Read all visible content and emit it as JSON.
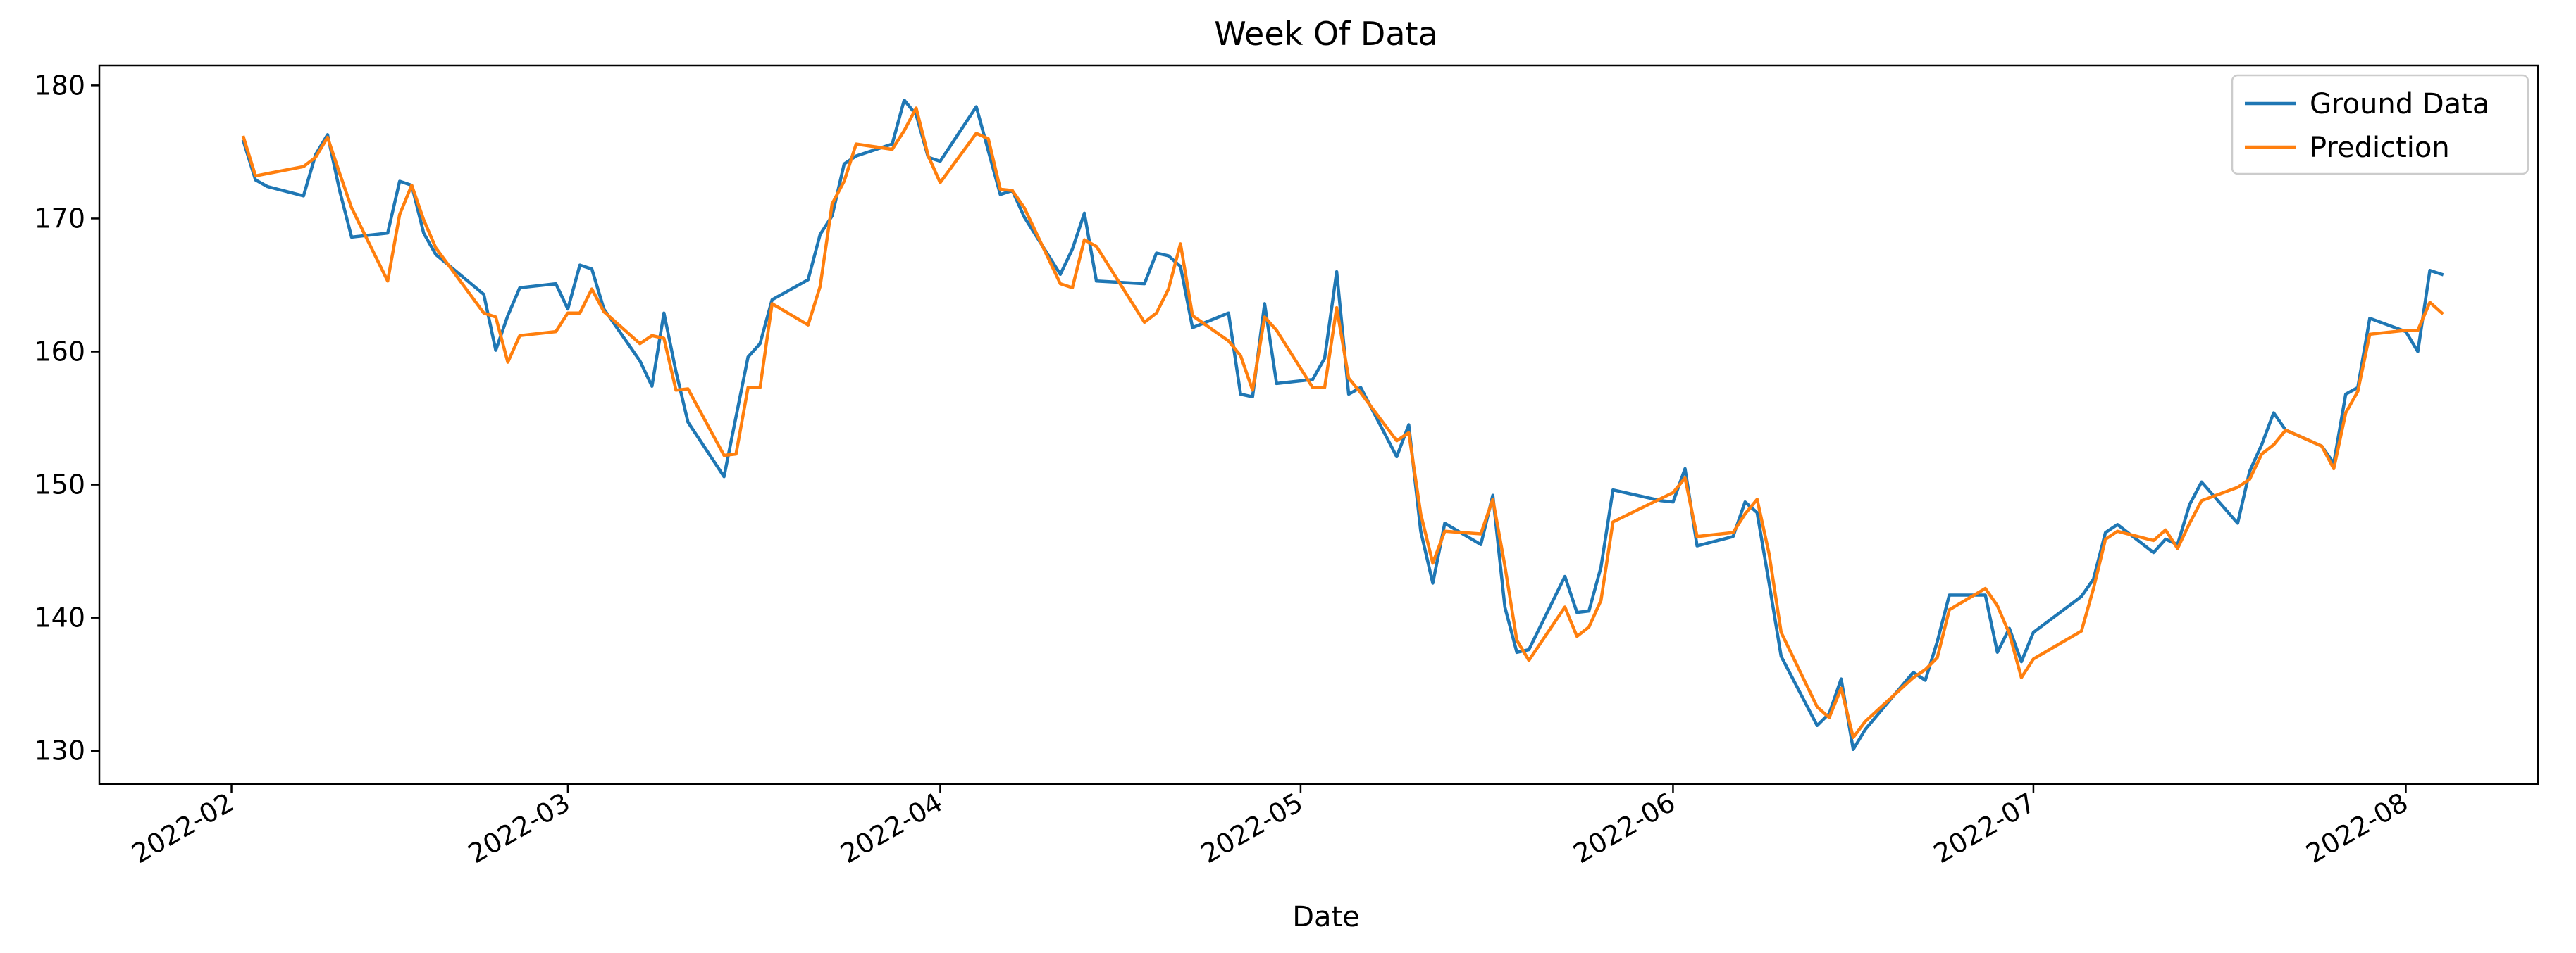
{
  "chart_data": {
    "type": "line",
    "title": "Week Of Data",
    "xlabel": "Date",
    "ylabel": "",
    "x_range": [
      "2022-01-21",
      "2022-08-12"
    ],
    "ylim": [
      127.5,
      181.5
    ],
    "grid": false,
    "legend_position": "top-right",
    "x_ticks": [
      "2022-02-01",
      "2022-03-01",
      "2022-04-01",
      "2022-05-01",
      "2022-06-01",
      "2022-07-01",
      "2022-08-01"
    ],
    "x_tick_labels": [
      "2022-02",
      "2022-03",
      "2022-04",
      "2022-05",
      "2022-06",
      "2022-07",
      "2022-08"
    ],
    "y_ticks": [
      130,
      140,
      150,
      160,
      170,
      180
    ],
    "series": [
      {
        "name": "Ground Data",
        "color": "#1f77b4",
        "points": [
          [
            "2022-02-02",
            175.8
          ],
          [
            "2022-02-03",
            172.9
          ],
          [
            "2022-02-04",
            172.4
          ],
          [
            "2022-02-07",
            171.7
          ],
          [
            "2022-02-08",
            174.8
          ],
          [
            "2022-02-09",
            176.3
          ],
          [
            "2022-02-10",
            172.1
          ],
          [
            "2022-02-11",
            168.6
          ],
          [
            "2022-02-14",
            168.9
          ],
          [
            "2022-02-15",
            172.8
          ],
          [
            "2022-02-16",
            172.5
          ],
          [
            "2022-02-17",
            168.9
          ],
          [
            "2022-02-18",
            167.3
          ],
          [
            "2022-02-22",
            164.3
          ],
          [
            "2022-02-23",
            160.1
          ],
          [
            "2022-02-24",
            162.7
          ],
          [
            "2022-02-25",
            164.8
          ],
          [
            "2022-02-28",
            165.1
          ],
          [
            "2022-03-01",
            163.2
          ],
          [
            "2022-03-02",
            166.5
          ],
          [
            "2022-03-03",
            166.2
          ],
          [
            "2022-03-04",
            163.2
          ],
          [
            "2022-03-07",
            159.3
          ],
          [
            "2022-03-08",
            157.4
          ],
          [
            "2022-03-09",
            162.9
          ],
          [
            "2022-03-10",
            158.5
          ],
          [
            "2022-03-11",
            154.7
          ],
          [
            "2022-03-14",
            150.6
          ],
          [
            "2022-03-15",
            155.1
          ],
          [
            "2022-03-16",
            159.6
          ],
          [
            "2022-03-17",
            160.6
          ],
          [
            "2022-03-18",
            163.9
          ],
          [
            "2022-03-21",
            165.4
          ],
          [
            "2022-03-22",
            168.8
          ],
          [
            "2022-03-23",
            170.2
          ],
          [
            "2022-03-24",
            174.1
          ],
          [
            "2022-03-25",
            174.7
          ],
          [
            "2022-03-28",
            175.6
          ],
          [
            "2022-03-29",
            178.9
          ],
          [
            "2022-03-30",
            177.8
          ],
          [
            "2022-03-31",
            174.6
          ],
          [
            "2022-04-01",
            174.3
          ],
          [
            "2022-04-04",
            178.4
          ],
          [
            "2022-04-05",
            175.1
          ],
          [
            "2022-04-06",
            171.8
          ],
          [
            "2022-04-07",
            172.1
          ],
          [
            "2022-04-08",
            170.1
          ],
          [
            "2022-04-11",
            165.8
          ],
          [
            "2022-04-12",
            167.7
          ],
          [
            "2022-04-13",
            170.4
          ],
          [
            "2022-04-14",
            165.3
          ],
          [
            "2022-04-18",
            165.1
          ],
          [
            "2022-04-19",
            167.4
          ],
          [
            "2022-04-20",
            167.2
          ],
          [
            "2022-04-21",
            166.4
          ],
          [
            "2022-04-22",
            161.8
          ],
          [
            "2022-04-25",
            162.9
          ],
          [
            "2022-04-26",
            156.8
          ],
          [
            "2022-04-27",
            156.6
          ],
          [
            "2022-04-28",
            163.6
          ],
          [
            "2022-04-29",
            157.6
          ],
          [
            "2022-05-02",
            157.9
          ],
          [
            "2022-05-03",
            159.5
          ],
          [
            "2022-05-04",
            166.0
          ],
          [
            "2022-05-05",
            156.8
          ],
          [
            "2022-05-06",
            157.3
          ],
          [
            "2022-05-09",
            152.1
          ],
          [
            "2022-05-10",
            154.5
          ],
          [
            "2022-05-11",
            146.5
          ],
          [
            "2022-05-12",
            142.6
          ],
          [
            "2022-05-13",
            147.1
          ],
          [
            "2022-05-16",
            145.5
          ],
          [
            "2022-05-17",
            149.2
          ],
          [
            "2022-05-18",
            140.8
          ],
          [
            "2022-05-19",
            137.4
          ],
          [
            "2022-05-20",
            137.6
          ],
          [
            "2022-05-23",
            143.1
          ],
          [
            "2022-05-24",
            140.4
          ],
          [
            "2022-05-25",
            140.5
          ],
          [
            "2022-05-26",
            143.8
          ],
          [
            "2022-05-27",
            149.6
          ],
          [
            "2022-05-31",
            148.8
          ],
          [
            "2022-06-01",
            148.7
          ],
          [
            "2022-06-02",
            151.2
          ],
          [
            "2022-06-03",
            145.4
          ],
          [
            "2022-06-06",
            146.1
          ],
          [
            "2022-06-07",
            148.7
          ],
          [
            "2022-06-08",
            147.9
          ],
          [
            "2022-06-09",
            142.6
          ],
          [
            "2022-06-10",
            137.1
          ],
          [
            "2022-06-13",
            131.9
          ],
          [
            "2022-06-14",
            132.8
          ],
          [
            "2022-06-15",
            135.4
          ],
          [
            "2022-06-16",
            130.1
          ],
          [
            "2022-06-17",
            131.6
          ],
          [
            "2022-06-21",
            135.9
          ],
          [
            "2022-06-22",
            135.3
          ],
          [
            "2022-06-23",
            138.2
          ],
          [
            "2022-06-24",
            141.7
          ],
          [
            "2022-06-27",
            141.7
          ],
          [
            "2022-06-28",
            137.4
          ],
          [
            "2022-06-29",
            139.2
          ],
          [
            "2022-06-30",
            136.7
          ],
          [
            "2022-07-01",
            138.9
          ],
          [
            "2022-07-05",
            141.6
          ],
          [
            "2022-07-06",
            142.9
          ],
          [
            "2022-07-07",
            146.4
          ],
          [
            "2022-07-08",
            147.0
          ],
          [
            "2022-07-11",
            144.9
          ],
          [
            "2022-07-12",
            145.9
          ],
          [
            "2022-07-13",
            145.5
          ],
          [
            "2022-07-14",
            148.5
          ],
          [
            "2022-07-15",
            150.2
          ],
          [
            "2022-07-18",
            147.1
          ],
          [
            "2022-07-19",
            151.0
          ],
          [
            "2022-07-20",
            153.0
          ],
          [
            "2022-07-21",
            155.4
          ],
          [
            "2022-07-22",
            154.1
          ],
          [
            "2022-07-25",
            152.9
          ],
          [
            "2022-07-26",
            151.6
          ],
          [
            "2022-07-27",
            156.8
          ],
          [
            "2022-07-28",
            157.3
          ],
          [
            "2022-07-29",
            162.5
          ],
          [
            "2022-08-01",
            161.5
          ],
          [
            "2022-08-02",
            160.0
          ],
          [
            "2022-08-03",
            166.1
          ],
          [
            "2022-08-04",
            165.8
          ]
        ]
      },
      {
        "name": "Prediction",
        "color": "#ff7f0e",
        "points": [
          [
            "2022-02-02",
            176.1
          ],
          [
            "2022-02-03",
            173.2
          ],
          [
            "2022-02-07",
            173.9
          ],
          [
            "2022-02-08",
            174.6
          ],
          [
            "2022-02-09",
            176.1
          ],
          [
            "2022-02-10",
            173.4
          ],
          [
            "2022-02-11",
            170.8
          ],
          [
            "2022-02-14",
            165.3
          ],
          [
            "2022-02-15",
            170.3
          ],
          [
            "2022-02-16",
            172.5
          ],
          [
            "2022-02-17",
            169.9
          ],
          [
            "2022-02-18",
            167.8
          ],
          [
            "2022-02-22",
            162.9
          ],
          [
            "2022-02-23",
            162.6
          ],
          [
            "2022-02-24",
            159.2
          ],
          [
            "2022-02-25",
            161.2
          ],
          [
            "2022-02-28",
            161.5
          ],
          [
            "2022-03-01",
            162.9
          ],
          [
            "2022-03-02",
            162.9
          ],
          [
            "2022-03-03",
            164.7
          ],
          [
            "2022-03-04",
            163.0
          ],
          [
            "2022-03-07",
            160.6
          ],
          [
            "2022-03-08",
            161.2
          ],
          [
            "2022-03-09",
            161.0
          ],
          [
            "2022-03-10",
            157.1
          ],
          [
            "2022-03-11",
            157.2
          ],
          [
            "2022-03-14",
            152.2
          ],
          [
            "2022-03-15",
            152.3
          ],
          [
            "2022-03-16",
            157.3
          ],
          [
            "2022-03-17",
            157.3
          ],
          [
            "2022-03-18",
            163.6
          ],
          [
            "2022-03-21",
            162.0
          ],
          [
            "2022-03-22",
            164.9
          ],
          [
            "2022-03-23",
            171.1
          ],
          [
            "2022-03-24",
            172.8
          ],
          [
            "2022-03-25",
            175.6
          ],
          [
            "2022-03-28",
            175.2
          ],
          [
            "2022-03-29",
            176.6
          ],
          [
            "2022-03-30",
            178.3
          ],
          [
            "2022-03-31",
            174.7
          ],
          [
            "2022-04-01",
            172.7
          ],
          [
            "2022-04-04",
            176.4
          ],
          [
            "2022-04-05",
            176.0
          ],
          [
            "2022-04-06",
            172.2
          ],
          [
            "2022-04-07",
            172.1
          ],
          [
            "2022-04-08",
            170.8
          ],
          [
            "2022-04-11",
            165.1
          ],
          [
            "2022-04-12",
            164.8
          ],
          [
            "2022-04-13",
            168.4
          ],
          [
            "2022-04-14",
            167.9
          ],
          [
            "2022-04-18",
            162.2
          ],
          [
            "2022-04-19",
            162.9
          ],
          [
            "2022-04-20",
            164.7
          ],
          [
            "2022-04-21",
            168.1
          ],
          [
            "2022-04-22",
            162.7
          ],
          [
            "2022-04-25",
            160.8
          ],
          [
            "2022-04-26",
            159.7
          ],
          [
            "2022-04-27",
            157.1
          ],
          [
            "2022-04-28",
            162.6
          ],
          [
            "2022-04-29",
            161.6
          ],
          [
            "2022-05-02",
            157.3
          ],
          [
            "2022-05-03",
            157.3
          ],
          [
            "2022-05-04",
            163.3
          ],
          [
            "2022-05-05",
            158.0
          ],
          [
            "2022-05-06",
            156.9
          ],
          [
            "2022-05-09",
            153.3
          ],
          [
            "2022-05-10",
            153.9
          ],
          [
            "2022-05-11",
            147.8
          ],
          [
            "2022-05-12",
            144.1
          ],
          [
            "2022-05-13",
            146.5
          ],
          [
            "2022-05-16",
            146.3
          ],
          [
            "2022-05-17",
            148.9
          ],
          [
            "2022-05-18",
            143.9
          ],
          [
            "2022-05-19",
            138.3
          ],
          [
            "2022-05-20",
            136.8
          ],
          [
            "2022-05-23",
            140.8
          ],
          [
            "2022-05-24",
            138.6
          ],
          [
            "2022-05-25",
            139.3
          ],
          [
            "2022-05-26",
            141.3
          ],
          [
            "2022-05-27",
            147.2
          ],
          [
            "2022-06-01",
            149.4
          ],
          [
            "2022-06-02",
            150.5
          ],
          [
            "2022-06-03",
            146.1
          ],
          [
            "2022-06-06",
            146.4
          ],
          [
            "2022-06-07",
            147.8
          ],
          [
            "2022-06-08",
            148.9
          ],
          [
            "2022-06-09",
            144.8
          ],
          [
            "2022-06-10",
            138.9
          ],
          [
            "2022-06-13",
            133.3
          ],
          [
            "2022-06-14",
            132.5
          ],
          [
            "2022-06-15",
            134.7
          ],
          [
            "2022-06-16",
            131.0
          ],
          [
            "2022-06-17",
            132.2
          ],
          [
            "2022-06-21",
            135.5
          ],
          [
            "2022-06-22",
            136.1
          ],
          [
            "2022-06-23",
            137.0
          ],
          [
            "2022-06-24",
            140.6
          ],
          [
            "2022-06-27",
            142.2
          ],
          [
            "2022-06-28",
            140.9
          ],
          [
            "2022-06-29",
            138.8
          ],
          [
            "2022-06-30",
            135.5
          ],
          [
            "2022-07-01",
            136.9
          ],
          [
            "2022-07-05",
            139.0
          ],
          [
            "2022-07-06",
            142.2
          ],
          [
            "2022-07-07",
            145.9
          ],
          [
            "2022-07-08",
            146.5
          ],
          [
            "2022-07-11",
            145.8
          ],
          [
            "2022-07-12",
            146.6
          ],
          [
            "2022-07-13",
            145.2
          ],
          [
            "2022-07-14",
            147.1
          ],
          [
            "2022-07-15",
            148.8
          ],
          [
            "2022-07-18",
            149.8
          ],
          [
            "2022-07-19",
            150.4
          ],
          [
            "2022-07-20",
            152.3
          ],
          [
            "2022-07-21",
            153.0
          ],
          [
            "2022-07-22",
            154.1
          ],
          [
            "2022-07-25",
            152.9
          ],
          [
            "2022-07-26",
            151.2
          ],
          [
            "2022-07-27",
            155.4
          ],
          [
            "2022-07-28",
            157.0
          ],
          [
            "2022-07-29",
            161.3
          ],
          [
            "2022-08-01",
            161.6
          ],
          [
            "2022-08-02",
            161.6
          ],
          [
            "2022-08-03",
            163.7
          ],
          [
            "2022-08-04",
            162.9
          ]
        ]
      }
    ]
  }
}
